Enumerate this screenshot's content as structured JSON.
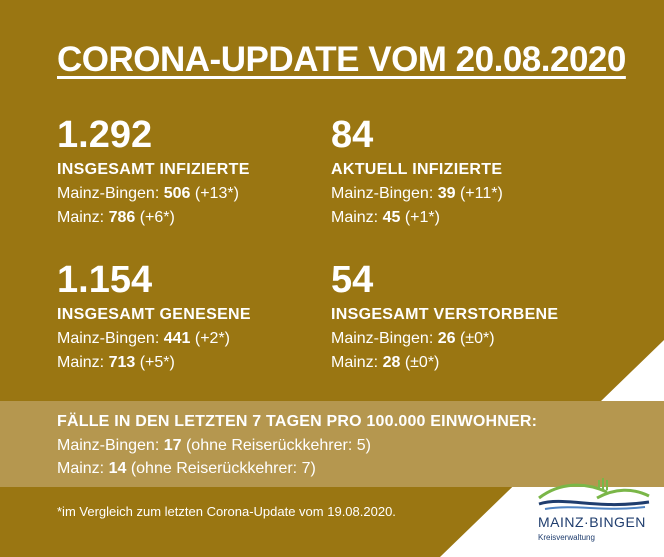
{
  "title": "CORONA-UPDATE VOM 20.08.2020",
  "stats": [
    {
      "value": "1.292",
      "label": "INSGESAMT INFIZIERTE",
      "l1_pre": "Mainz-Bingen: ",
      "l1_val": "506",
      "l1_post": " (+13*)",
      "l2_pre": "Mainz: ",
      "l2_val": "786",
      "l2_post": " (+6*)"
    },
    {
      "value": "84",
      "label": "AKTUELL INFIZIERTE",
      "l1_pre": "Mainz-Bingen: ",
      "l1_val": "39",
      "l1_post": " (+11*)",
      "l2_pre": "Mainz: ",
      "l2_val": "45",
      "l2_post": " (+1*)"
    },
    {
      "value": "1.154",
      "label": "INSGESAMT GENESENE",
      "l1_pre": "Mainz-Bingen: ",
      "l1_val": "441",
      "l1_post": " (+2*)",
      "l2_pre": "Mainz: ",
      "l2_val": "713",
      "l2_post": " (+5*)"
    },
    {
      "value": "54",
      "label": "INSGESAMT VERSTORBENE",
      "l1_pre": "Mainz-Bingen: ",
      "l1_val": "26",
      "l1_post": " (±0*)",
      "l2_pre": "Mainz: ",
      "l2_val": "28",
      "l2_post": " (±0*)"
    }
  ],
  "incidence": {
    "heading": "FÄLLE IN DEN LETZTEN 7 TAGEN PRO 100.000 EINWOHNER:",
    "l1_pre": "Mainz-Bingen: ",
    "l1_val": "17",
    "l1_post": " (ohne Reiserückkehrer: 5)",
    "l2_pre": "Mainz: ",
    "l2_val": "14",
    "l2_post": " (ohne Reiserückkehrer: 7)"
  },
  "footnote": "*im Vergleich zum letzten Corona-Update vom 19.08.2020.",
  "logo": {
    "name": "MAINZ·BINGEN",
    "sub": "Kreisverwaltung"
  },
  "colors": {
    "background": "#9a7612",
    "band": "#b5974f",
    "corner": "#ffffff",
    "logo_blue": "#1f3d6e",
    "logo_green": "#7ab648"
  }
}
